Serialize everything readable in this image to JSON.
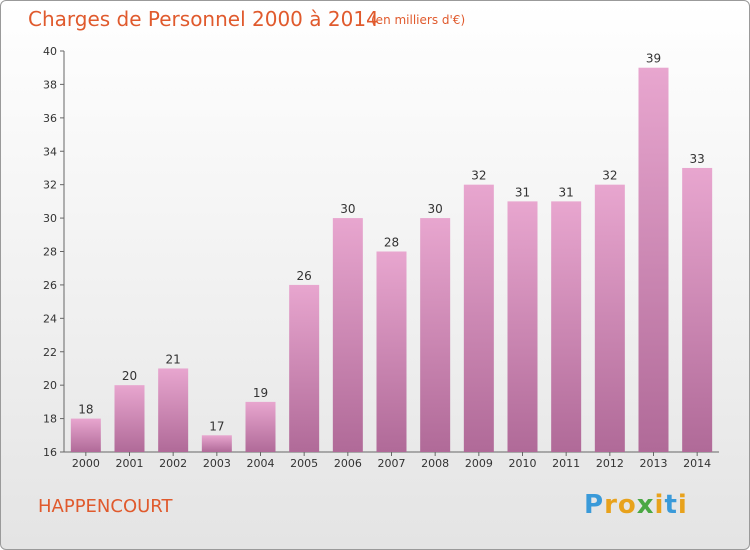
{
  "header": {
    "title": "Charges de Personnel 2000 à 2014",
    "subtitle": "(en milliers d'€)"
  },
  "footer": {
    "commune": "HAPPENCOURT",
    "logo_letters": [
      "P",
      "r",
      "o",
      "x",
      "i",
      "t",
      "i"
    ],
    "logo_colors": [
      "#3a9ad9",
      "#e8a21c",
      "#e8a21c",
      "#4aa843",
      "#e8a21c",
      "#3a9ad9",
      "#e8a21c"
    ]
  },
  "chart_data": {
    "type": "bar",
    "title": "Charges de Personnel 2000 à 2014",
    "subtitle": "(en milliers d'€)",
    "categories": [
      "2000",
      "2001",
      "2002",
      "2003",
      "2004",
      "2005",
      "2006",
      "2007",
      "2008",
      "2009",
      "2010",
      "2011",
      "2012",
      "2013",
      "2014"
    ],
    "values": [
      18,
      20,
      21,
      17,
      19,
      26,
      30,
      28,
      30,
      32,
      31,
      31,
      32,
      39,
      33
    ],
    "ylim": [
      16,
      40
    ],
    "yticks": [
      16,
      18,
      20,
      22,
      24,
      26,
      28,
      30,
      32,
      34,
      36,
      38,
      40
    ],
    "bar_color_top": "#e8a6cf",
    "bar_color_bottom": "#b06a98",
    "grid": false
  }
}
